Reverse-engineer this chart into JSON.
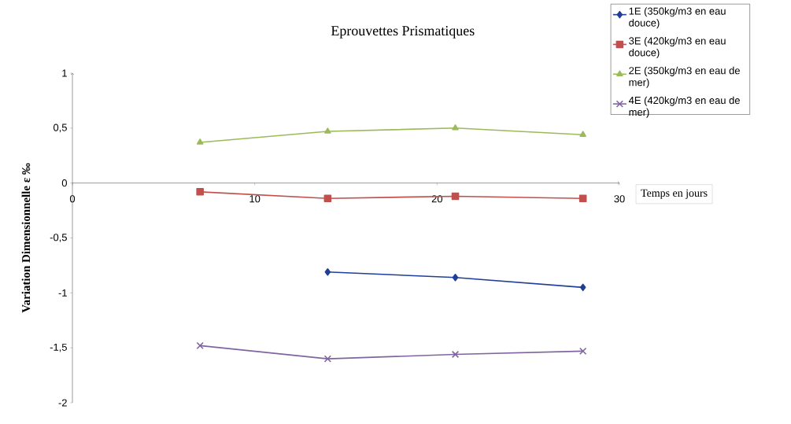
{
  "chart_data": {
    "type": "line",
    "title": "Eprouvettes Prismatiques",
    "xlabel": "Temps en jours",
    "ylabel": "Variation Dimensionnelle   ε ‰",
    "x": [
      7,
      14,
      21,
      28
    ],
    "series": [
      {
        "name": "1E (350kg/m3 en eau douce)",
        "color": "#1f3f99",
        "marker": "diamond",
        "values": [
          null,
          -0.81,
          -0.86,
          -0.95
        ]
      },
      {
        "name": "3E (420kg/m3 en eau douce)",
        "color": "#c0504d",
        "marker": "square",
        "values": [
          -0.08,
          -0.14,
          -0.12,
          -0.14
        ]
      },
      {
        "name": "2E (350kg/m3 en eau de mer)",
        "color": "#9bbb59",
        "marker": "triangle",
        "values": [
          0.37,
          0.47,
          0.5,
          0.44
        ]
      },
      {
        "name": "4E (420kg/m3 en eau de mer)",
        "color": "#8064a2",
        "marker": "cross",
        "values": [
          -1.48,
          -1.6,
          -1.56,
          -1.53
        ]
      }
    ],
    "xlim": [
      0,
      30
    ],
    "xticks": [
      0,
      10,
      20,
      30
    ],
    "ylim": [
      -2,
      1
    ],
    "yticks": [
      -2,
      {
        "value": -1.5,
        "label": "-1,5"
      },
      -1,
      {
        "value": -0.5,
        "label": "-0,5"
      },
      0,
      {
        "value": 0.5,
        "label": "0,5"
      },
      1
    ],
    "grid": false,
    "legend": "top right"
  }
}
